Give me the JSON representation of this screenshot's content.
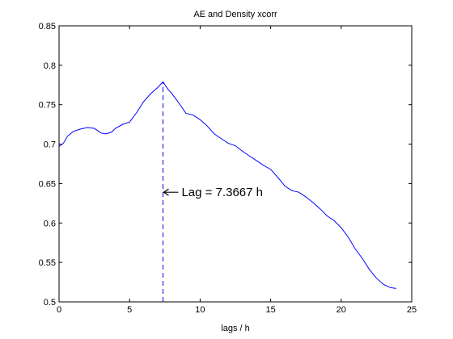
{
  "chart_data": {
    "type": "line",
    "title": "AE and Density xcorr",
    "xlabel": "lags / h",
    "ylabel": "",
    "xlim": [
      0,
      25
    ],
    "ylim": [
      0.5,
      0.85
    ],
    "xticks": [
      0,
      5,
      10,
      15,
      20,
      25
    ],
    "xtick_labels": [
      "0",
      "5",
      "10",
      "15",
      "20",
      "25"
    ],
    "yticks": [
      0.5,
      0.55,
      0.6,
      0.65,
      0.7,
      0.75,
      0.8,
      0.85
    ],
    "ytick_labels": [
      "0.5",
      "0.55",
      "0.6",
      "0.65",
      "0.7",
      "0.75",
      "0.8",
      "0.85"
    ],
    "grid": false,
    "series": [
      {
        "color": "#0000ff",
        "x": [
          0,
          0.3,
          0.6,
          1,
          1.5,
          2,
          2.5,
          3,
          3.3,
          3.7,
          4,
          4.5,
          5,
          5.5,
          6,
          6.5,
          7,
          7.3667,
          7.7,
          8,
          8.5,
          9,
          9.5,
          10,
          10.5,
          11,
          11.5,
          12,
          12.5,
          13,
          13.5,
          14,
          14.5,
          15,
          15.5,
          16,
          16.5,
          17,
          17.5,
          18,
          18.5,
          19,
          19.5,
          20,
          20.5,
          21,
          21.5,
          22,
          22.5,
          23,
          23.5,
          23.9
        ],
        "y": [
          0.697,
          0.701,
          0.71,
          0.716,
          0.719,
          0.721,
          0.72,
          0.714,
          0.713,
          0.715,
          0.72,
          0.725,
          0.728,
          0.74,
          0.754,
          0.764,
          0.772,
          0.779,
          0.77,
          0.764,
          0.752,
          0.739,
          0.737,
          0.731,
          0.723,
          0.713,
          0.707,
          0.701,
          0.698,
          0.691,
          0.685,
          0.679,
          0.673,
          0.668,
          0.658,
          0.647,
          0.641,
          0.639,
          0.633,
          0.626,
          0.618,
          0.609,
          0.603,
          0.594,
          0.582,
          0.567,
          0.555,
          0.541,
          0.53,
          0.522,
          0.518,
          0.517
        ]
      }
    ],
    "vline": {
      "x": 7.3667,
      "style": "dashed",
      "color": "#0000ff"
    },
    "annotation": {
      "text": "Lag = 7.3667 h",
      "arrow_x": 7.3667,
      "y": 0.639
    }
  }
}
